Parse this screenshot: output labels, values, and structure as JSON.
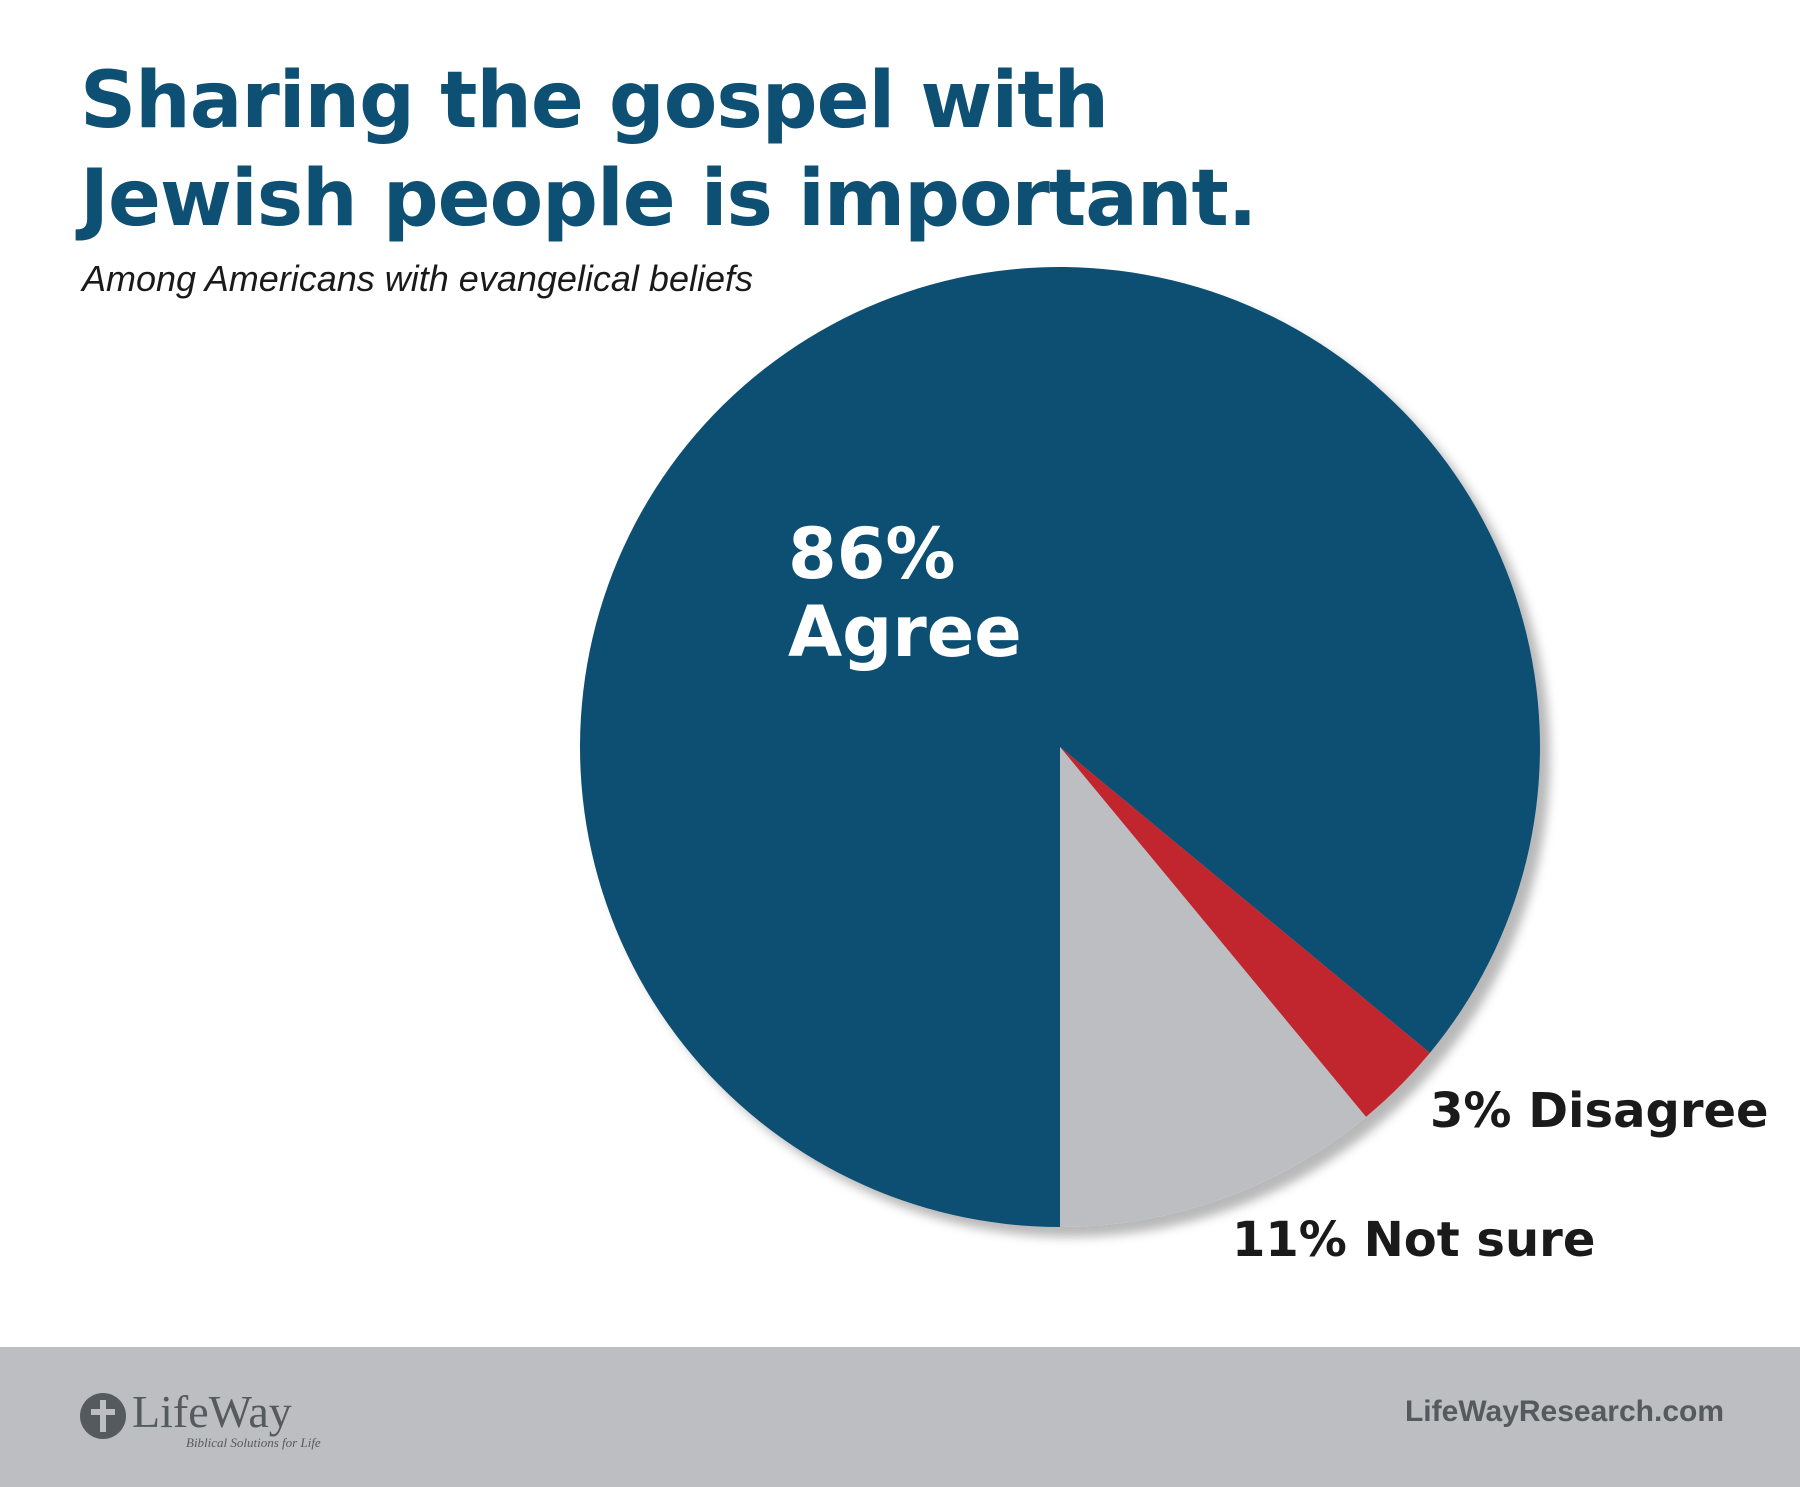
{
  "title_lines": [
    "Sharing the gospel with",
    "Jewish people is important."
  ],
  "subtitle": "Among Americans with evangelical beliefs",
  "chart_data": {
    "type": "pie",
    "title": "Sharing the gospel with Jewish people is important.",
    "subtitle": "Among Americans with evangelical beliefs",
    "slices": [
      {
        "label": "Agree",
        "value": 86,
        "value_label": "86%",
        "color": "#0e5073"
      },
      {
        "label": "Disagree",
        "value": 3,
        "value_label": "3%",
        "color": "#c1272d"
      },
      {
        "label": "Not sure",
        "value": 11,
        "value_label": "11%",
        "color": "#bcbec1"
      }
    ]
  },
  "footer": {
    "logo_name": "LifeWay",
    "logo_tagline": "Biblical Solutions for Life",
    "website": "LifeWayResearch.com"
  }
}
